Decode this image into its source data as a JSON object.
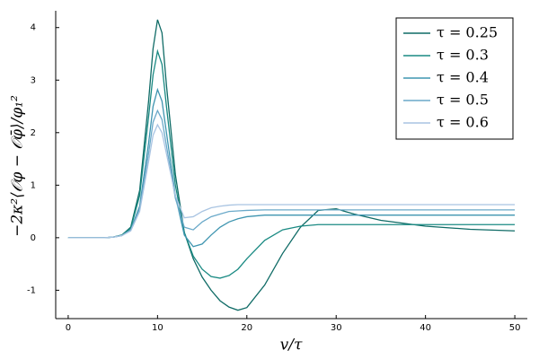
{
  "chart_data": {
    "type": "line",
    "xlabel": "v/τ",
    "ylabel": "−2κ²⟨𝒪φ − 𝒪φ̄⟩/φ₁²",
    "x": [
      0,
      2,
      4,
      5,
      6,
      7,
      8,
      9,
      9.5,
      10,
      10.5,
      11,
      12,
      13,
      14,
      15,
      16,
      17,
      18,
      19,
      20,
      22,
      24,
      26,
      28,
      30,
      32,
      35,
      40,
      45,
      50
    ],
    "series": [
      {
        "name": "τ = 0.25",
        "color": "#0f6b66",
        "values": [
          0,
          0,
          0,
          0.01,
          0.05,
          0.2,
          0.9,
          2.6,
          3.6,
          4.15,
          3.9,
          2.9,
          1.2,
          0.1,
          -0.4,
          -0.75,
          -1.0,
          -1.2,
          -1.32,
          -1.38,
          -1.33,
          -0.9,
          -0.3,
          0.2,
          0.52,
          0.55,
          0.45,
          0.33,
          0.22,
          0.16,
          0.13
        ]
      },
      {
        "name": "τ = 0.3",
        "color": "#1a8a83",
        "values": [
          0,
          0,
          0,
          0.01,
          0.05,
          0.18,
          0.8,
          2.3,
          3.1,
          3.55,
          3.3,
          2.5,
          1.0,
          0.1,
          -0.35,
          -0.6,
          -0.74,
          -0.77,
          -0.72,
          -0.6,
          -0.4,
          -0.05,
          0.15,
          0.22,
          0.25,
          0.25,
          0.25,
          0.25,
          0.25,
          0.25,
          0.25
        ]
      },
      {
        "name": "τ = 0.4",
        "color": "#3f95b0",
        "values": [
          0,
          0,
          0,
          0.01,
          0.04,
          0.15,
          0.6,
          1.8,
          2.5,
          2.82,
          2.6,
          2.0,
          0.8,
          0.05,
          -0.17,
          -0.12,
          0.05,
          0.2,
          0.3,
          0.36,
          0.4,
          0.43,
          0.43,
          0.43,
          0.43,
          0.43,
          0.43,
          0.43,
          0.43,
          0.43,
          0.43
        ]
      },
      {
        "name": "τ = 0.5",
        "color": "#6aa9c9",
        "values": [
          0,
          0,
          0,
          0.01,
          0.04,
          0.14,
          0.55,
          1.6,
          2.2,
          2.42,
          2.25,
          1.75,
          0.75,
          0.2,
          0.15,
          0.3,
          0.4,
          0.45,
          0.5,
          0.51,
          0.52,
          0.53,
          0.53,
          0.53,
          0.53,
          0.53,
          0.53,
          0.53,
          0.53,
          0.53,
          0.53
        ]
      },
      {
        "name": "τ = 0.6",
        "color": "#a9c4e2",
        "values": [
          0,
          0,
          0,
          0.01,
          0.04,
          0.13,
          0.5,
          1.45,
          1.95,
          2.15,
          2.0,
          1.6,
          0.8,
          0.38,
          0.4,
          0.5,
          0.57,
          0.6,
          0.62,
          0.63,
          0.63,
          0.63,
          0.63,
          0.63,
          0.63,
          0.63,
          0.63,
          0.63,
          0.63,
          0.63,
          0.63
        ]
      }
    ],
    "xlim": [
      -1.4,
      51.4
    ],
    "ylim": [
      -1.54,
      4.32
    ],
    "xticks": [
      0,
      10,
      20,
      30,
      40,
      50
    ],
    "yticks": [
      -1,
      0,
      1,
      2,
      3,
      4
    ],
    "grid": false,
    "legend": "top-right"
  }
}
